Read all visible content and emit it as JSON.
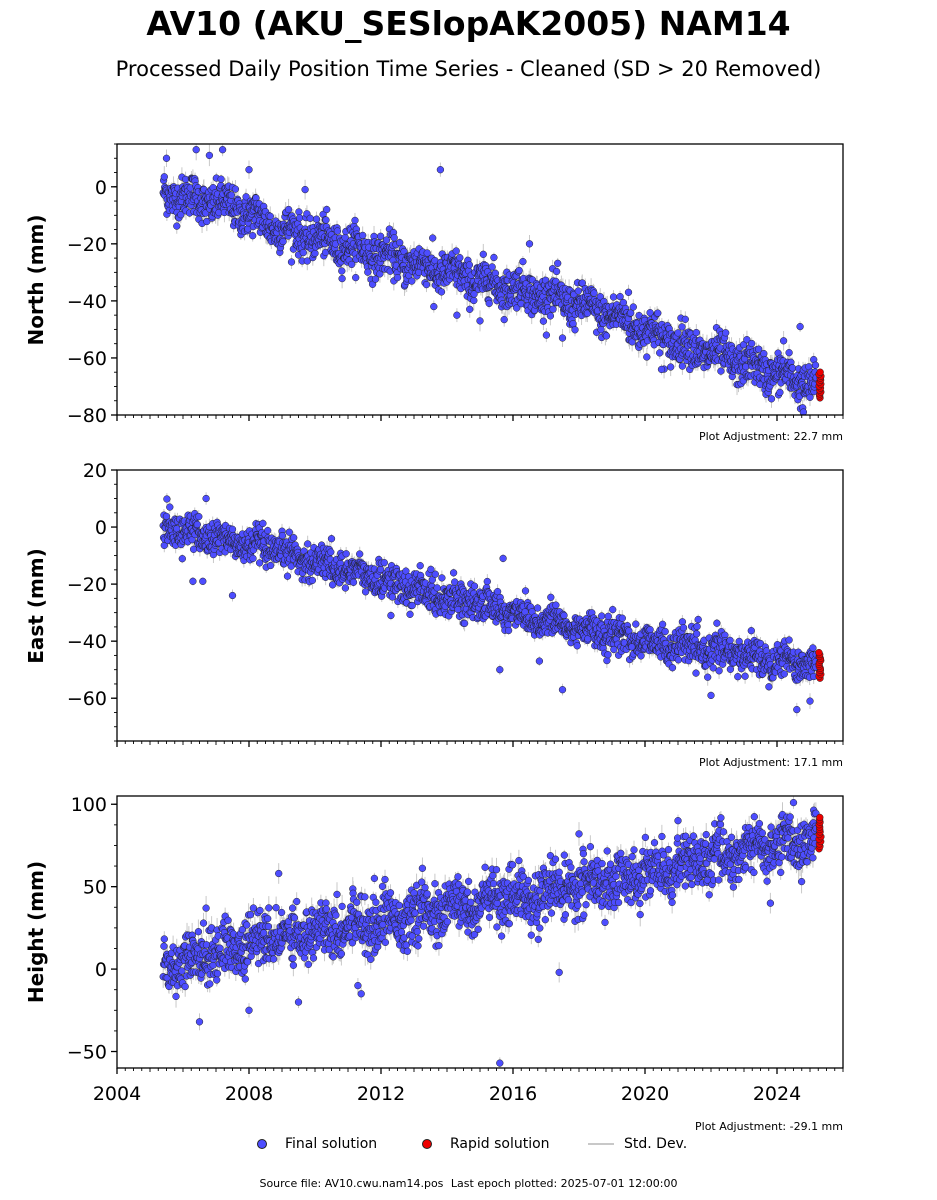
{
  "header": {
    "title": "AV10 (AKU_SESlopAK2005) NAM14",
    "subtitle": "Processed Daily Position Time Series - Cleaned (SD > 20 Removed)"
  },
  "legend": {
    "final": "Final solution",
    "rapid": "Rapid solution",
    "std": "Std. Dev."
  },
  "footer": {
    "source": "Source file: AV10.cwu.nam14.pos",
    "last_epoch": "Last epoch plotted: 2025-07-01 12:00:00"
  },
  "colors": {
    "final": "#4d4dff",
    "rapid": "#ee0000",
    "std": "#c8c8c8",
    "edge": "#222222"
  },
  "chart_data": [
    {
      "type": "scatter",
      "ylabel": "North (mm)",
      "adjustment": "Plot Adjustment: 22.7 mm",
      "xlim": [
        2004,
        2026
      ],
      "ylim": [
        -80,
        15
      ],
      "yticks": [
        0,
        -20,
        -40,
        -60,
        -80
      ],
      "ytick_labels": [
        "0",
        "−20",
        "−40",
        "−60",
        "−80"
      ],
      "x_start": 2005.4,
      "x_end": 2025.2,
      "trend": [
        [
          2005.4,
          -2
        ],
        [
          2007.5,
          -7
        ],
        [
          2009,
          -15
        ],
        [
          2011,
          -21
        ],
        [
          2013,
          -27
        ],
        [
          2015,
          -33
        ],
        [
          2017,
          -38
        ],
        [
          2019,
          -45
        ],
        [
          2021,
          -55
        ],
        [
          2023,
          -62
        ],
        [
          2025.2,
          -70
        ]
      ],
      "noise_sd": 3.5,
      "err": 2.5,
      "outliers": [
        [
          2005.5,
          10
        ],
        [
          2006.4,
          13
        ],
        [
          2007.2,
          13
        ],
        [
          2006.8,
          11
        ],
        [
          2008,
          6
        ],
        [
          2009.7,
          -1
        ],
        [
          2013.8,
          6
        ],
        [
          2013.6,
          -42
        ],
        [
          2014.3,
          -45
        ],
        [
          2015,
          -47
        ],
        [
          2019.5,
          -37
        ],
        [
          2020.5,
          -64
        ],
        [
          2024.2,
          -54
        ],
        [
          2024.7,
          -49
        ],
        [
          2024.8,
          -79
        ],
        [
          2016.5,
          -20
        ],
        [
          2017.5,
          -53
        ]
      ],
      "rapid": {
        "x": 2025.3,
        "min": -74,
        "max": -65
      }
    },
    {
      "type": "scatter",
      "ylabel": "East (mm)",
      "adjustment": "Plot Adjustment: 17.1 mm",
      "xlim": [
        2004,
        2026
      ],
      "ylim": [
        -75,
        20
      ],
      "yticks": [
        20,
        0,
        -20,
        -40,
        -60
      ],
      "ytick_labels": [
        "20",
        "0",
        "−20",
        "−40",
        "−60"
      ],
      "x_start": 2005.4,
      "x_end": 2025.2,
      "trend": [
        [
          2005.4,
          0
        ],
        [
          2007,
          -4
        ],
        [
          2009,
          -9
        ],
        [
          2011,
          -15
        ],
        [
          2013,
          -22
        ],
        [
          2015,
          -27
        ],
        [
          2017,
          -33
        ],
        [
          2019,
          -38
        ],
        [
          2021,
          -42
        ],
        [
          2023,
          -45
        ],
        [
          2025.2,
          -48
        ]
      ],
      "noise_sd": 3.0,
      "err": 2.0,
      "outliers": [
        [
          2005.6,
          7
        ],
        [
          2006.7,
          10
        ],
        [
          2006.3,
          -19
        ],
        [
          2006.6,
          -19
        ],
        [
          2007.5,
          -24
        ],
        [
          2012.3,
          -31
        ],
        [
          2015.6,
          -50
        ],
        [
          2015.7,
          -11
        ],
        [
          2017.5,
          -57
        ],
        [
          2019.6,
          -42
        ],
        [
          2022,
          -59
        ],
        [
          2024.6,
          -64
        ],
        [
          2025,
          -61
        ],
        [
          2016.8,
          -47
        ]
      ],
      "rapid": {
        "x": 2025.3,
        "min": -53,
        "max": -44
      }
    },
    {
      "type": "scatter",
      "ylabel": "Height (mm)",
      "adjustment": "Plot Adjustment: -29.1 mm",
      "xlim": [
        2004,
        2026
      ],
      "ylim": [
        -60,
        105
      ],
      "yticks": [
        100,
        50,
        0,
        -50
      ],
      "ytick_labels": [
        "100",
        "50",
        "0",
        "−50"
      ],
      "xticks": [
        2004,
        2008,
        2012,
        2016,
        2020,
        2024
      ],
      "xtick_labels": [
        "2004",
        "2008",
        "2012",
        "2016",
        "2020",
        "2024"
      ],
      "x_start": 2005.4,
      "x_end": 2025.2,
      "trend": [
        [
          2005.4,
          3
        ],
        [
          2007,
          10
        ],
        [
          2009,
          20
        ],
        [
          2011,
          27
        ],
        [
          2013,
          32
        ],
        [
          2015,
          40
        ],
        [
          2017,
          46
        ],
        [
          2019,
          53
        ],
        [
          2021,
          62
        ],
        [
          2023,
          72
        ],
        [
          2025.2,
          79
        ]
      ],
      "noise_sd": 8.0,
      "err": 5.0,
      "outliers": [
        [
          2006.5,
          -32
        ],
        [
          2006.7,
          37
        ],
        [
          2008,
          -25
        ],
        [
          2009.5,
          -20
        ],
        [
          2008.9,
          58
        ],
        [
          2011.3,
          -10
        ],
        [
          2011.4,
          -15
        ],
        [
          2011.8,
          55
        ],
        [
          2015.6,
          -57
        ],
        [
          2017.4,
          -2
        ],
        [
          2018,
          82
        ],
        [
          2021,
          90
        ],
        [
          2023.8,
          40
        ],
        [
          2024.5,
          101
        ]
      ],
      "rapid": {
        "x": 2025.3,
        "min": 73,
        "max": 92
      }
    }
  ]
}
